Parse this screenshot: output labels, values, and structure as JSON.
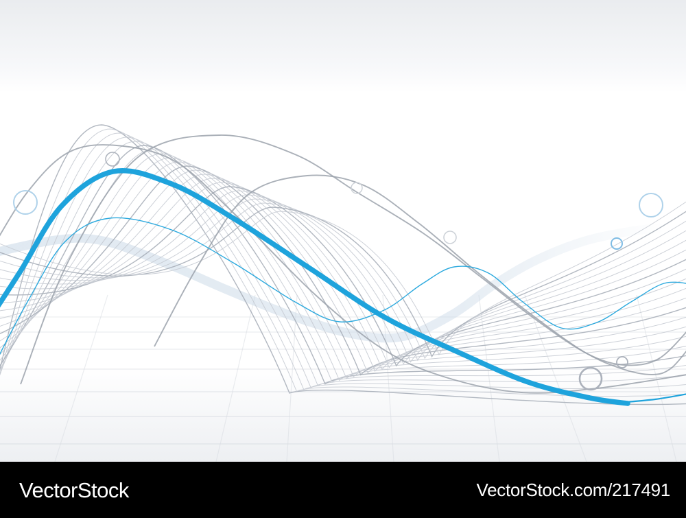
{
  "watermark": {
    "brand": "VectorStock",
    "reference": "VectorStock.com/217491",
    "bar_background": "#000000",
    "text_color": "#ffffff"
  },
  "colors": {
    "accent_blue": "#1EA3DC",
    "thin_blue": "#2BA9DE",
    "pale_wave": "#C7D7E6",
    "fan_light": "#C6CBD3",
    "fan_dark": "#A9AFB9",
    "medium_gray": "#9BA2AC",
    "circle_light_blue": "#AFD2EA",
    "circle_blue": "#7FBCE4",
    "circle_gray_light": "#CDD2D8",
    "circle_gray_mid": "#ABB1BB",
    "grid_line": "#D8DCE2",
    "top_band": "#EAECEF",
    "floor_tint": "#EDEFF2",
    "background": "#FFFFFF"
  },
  "icon_names": [
    "decorative-circle"
  ]
}
